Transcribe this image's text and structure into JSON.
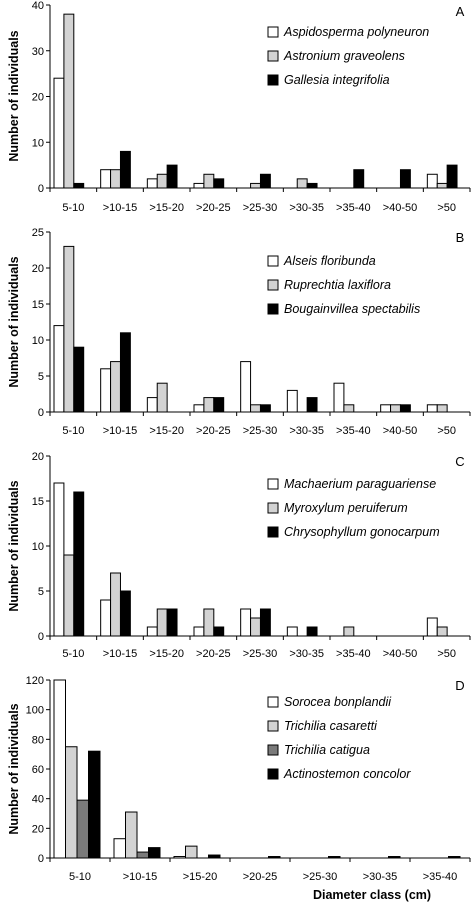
{
  "x_axis_title": "Diameter class (cm)",
  "colors": {
    "white": "#ffffff",
    "light_gray": "#d3d3d3",
    "dark_gray": "#7a7a7a",
    "black": "#000000"
  },
  "chart_data": [
    {
      "type": "bar",
      "panel_letter": "A",
      "ylabel": "Number of individuals",
      "ylim": [
        0,
        40
      ],
      "yticks": [
        0,
        10,
        20,
        30,
        40
      ],
      "categories": [
        "5-10",
        ">10-15",
        ">15-20",
        ">20-25",
        ">25-30",
        ">30-35",
        ">35-40",
        ">40-50",
        ">50"
      ],
      "series": [
        {
          "name": "Aspidosperma polyneuron",
          "color": "white",
          "values": [
            24,
            4,
            2,
            1,
            0,
            0,
            0,
            0,
            3
          ]
        },
        {
          "name": "Astronium graveolens",
          "color": "light_gray",
          "values": [
            38,
            4,
            3,
            3,
            1,
            2,
            0,
            0,
            1
          ]
        },
        {
          "name": "Gallesia integrifolia",
          "color": "black",
          "values": [
            1,
            8,
            5,
            2,
            3,
            1,
            4,
            4,
            5
          ]
        }
      ]
    },
    {
      "type": "bar",
      "panel_letter": "B",
      "ylabel": "Number of individuals",
      "ylim": [
        0,
        25
      ],
      "yticks": [
        0,
        5,
        10,
        15,
        20,
        25
      ],
      "categories": [
        "5-10",
        ">10-15",
        ">15-20",
        ">20-25",
        ">25-30",
        ">30-35",
        ">35-40",
        ">40-50",
        ">50"
      ],
      "series": [
        {
          "name": "Alseis floribunda",
          "color": "white",
          "values": [
            12,
            6,
            2,
            1,
            7,
            3,
            4,
            1,
            1
          ]
        },
        {
          "name": "Ruprechtia laxiflora",
          "color": "light_gray",
          "values": [
            23,
            7,
            4,
            2,
            1,
            0,
            1,
            1,
            1
          ]
        },
        {
          "name": "Bougainvillea spectabilis",
          "color": "black",
          "values": [
            9,
            11,
            0,
            2,
            1,
            2,
            0,
            1,
            0
          ]
        }
      ]
    },
    {
      "type": "bar",
      "panel_letter": "C",
      "ylabel": "Number of individuals",
      "ylim": [
        0,
        20
      ],
      "yticks": [
        0,
        5,
        10,
        15,
        20
      ],
      "categories": [
        "5-10",
        ">10-15",
        ">15-20",
        ">20-25",
        ">25-30",
        ">30-35",
        ">35-40",
        ">40-50",
        ">50"
      ],
      "series": [
        {
          "name": "Machaerium paraguariense",
          "color": "white",
          "values": [
            17,
            4,
            1,
            1,
            3,
            1,
            0,
            0,
            2
          ]
        },
        {
          "name": "Myroxylum peruiferum",
          "color": "light_gray",
          "values": [
            9,
            7,
            3,
            3,
            2,
            0,
            1,
            0,
            1
          ]
        },
        {
          "name": "Chrysophyllum gonocarpum",
          "color": "black",
          "values": [
            16,
            5,
            3,
            1,
            3,
            1,
            0,
            0,
            0
          ]
        }
      ]
    },
    {
      "type": "bar",
      "panel_letter": "D",
      "ylabel": "Number of individuals",
      "xlabel": "Diameter class (cm)",
      "ylim": [
        0,
        120
      ],
      "yticks": [
        0,
        20,
        40,
        60,
        80,
        100,
        120
      ],
      "categories": [
        "5-10",
        ">10-15",
        ">15-20",
        ">20-25",
        ">25-30",
        ">30-35",
        ">35-40"
      ],
      "series": [
        {
          "name": "Sorocea bonplandii",
          "color": "white",
          "values": [
            120,
            13,
            1,
            0,
            0,
            0,
            0
          ]
        },
        {
          "name": "Trichilia casaretti",
          "color": "light_gray",
          "values": [
            75,
            31,
            8,
            0,
            0,
            0,
            0
          ]
        },
        {
          "name": "Trichilia catigua",
          "color": "dark_gray",
          "values": [
            39,
            4,
            0,
            0,
            0,
            0,
            0
          ]
        },
        {
          "name": "Actinostemon concolor",
          "color": "black",
          "values": [
            72,
            7,
            2,
            1,
            1,
            1,
            1
          ]
        }
      ]
    }
  ]
}
